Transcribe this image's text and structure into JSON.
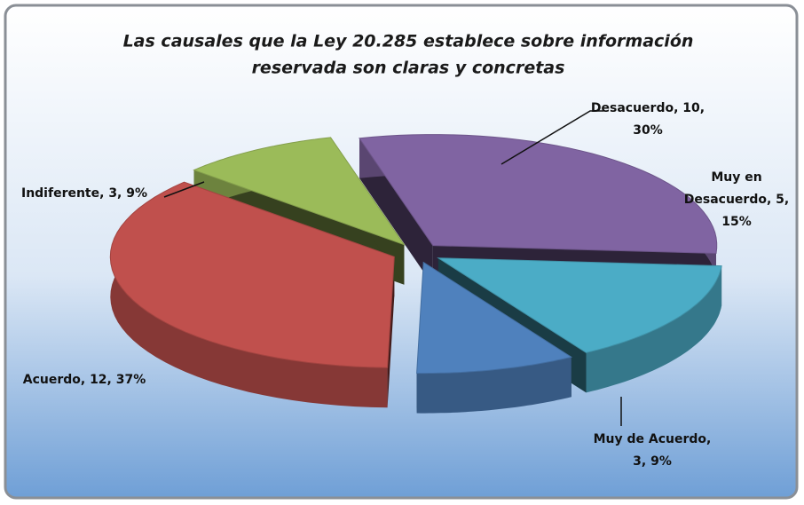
{
  "chart_data": {
    "type": "pie",
    "title": [
      "Las causales que la Ley 20.285 establece sobre información",
      "reservada son claras y concretas"
    ],
    "categories": [
      "Desacuerdo",
      "Muy en Desacuerdo",
      "Muy de Acuerdo",
      "Acuerdo",
      "Indiferente"
    ],
    "values": [
      10,
      5,
      3,
      12,
      3
    ],
    "value_labels": [
      [
        "Desacuerdo, 10,",
        "30%"
      ],
      [
        "Muy en",
        "Desacuerdo, 5,",
        "15%"
      ],
      [
        "Muy de Acuerdo,",
        "3, 9%"
      ],
      [
        "Acuerdo, 12, 37%"
      ],
      [
        "Indiferente, 3, 9%"
      ]
    ],
    "colors": [
      "#8064a2",
      "#4bacc6",
      "#4f81bd",
      "#c0504d",
      "#9bbb59"
    ]
  }
}
